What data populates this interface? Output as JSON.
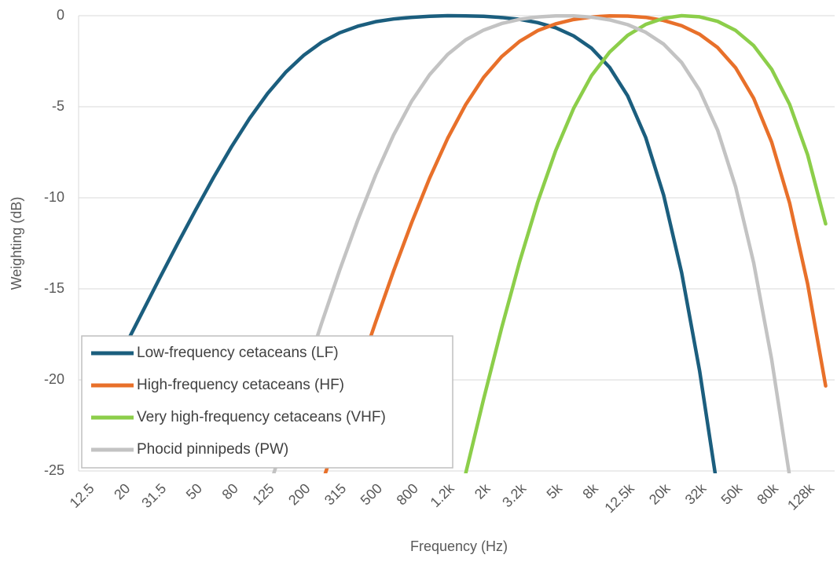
{
  "chart_data": {
    "type": "line",
    "x_label": "Frequency (Hz)",
    "y_label": "Weighting (dB)",
    "categories": [
      "12.5",
      null,
      "20",
      null,
      "31.5",
      null,
      "50",
      null,
      "80",
      null,
      "125",
      null,
      "200",
      null,
      "315",
      null,
      "500",
      null,
      "800",
      null,
      "1.2k",
      null,
      "2k",
      null,
      "3.2k",
      null,
      "5k",
      null,
      "8k",
      null,
      "12.5k",
      null,
      "20k",
      null,
      "32k",
      null,
      "50k",
      null,
      "80k",
      null,
      "128k",
      null
    ],
    "ylim": [
      -25,
      0
    ],
    "yticks": [
      -25,
      -20,
      -15,
      -10,
      -5,
      0
    ],
    "grid": true,
    "legend": "lower left",
    "series": [
      {
        "name": "Low-frequency cetaceans (LF)",
        "color": "#1b5e7e",
        "values": [
          -22.25,
          -20.27,
          -18.3,
          -16.36,
          -14.42,
          -12.52,
          -10.67,
          -8.88,
          -7.19,
          -5.64,
          -4.27,
          -3.11,
          -2.18,
          -1.46,
          -0.94,
          -0.58,
          -0.33,
          -0.18,
          -0.09,
          -0.03,
          0.0,
          -0.01,
          -0.03,
          -0.1,
          -0.2,
          -0.38,
          -0.66,
          -1.11,
          -1.79,
          -2.84,
          -4.4,
          -6.68,
          -9.85,
          -14.11,
          -19.51,
          -26.03,
          null,
          null,
          null,
          null,
          null,
          null
        ]
      },
      {
        "name": "High-frequency cetaceans (HF)",
        "color": "#e8702a",
        "values": [
          null,
          null,
          null,
          null,
          null,
          null,
          null,
          null,
          null,
          null,
          null,
          null,
          -28.82,
          -25.76,
          -22.73,
          -19.74,
          -16.83,
          -14.02,
          -11.37,
          -8.92,
          -6.74,
          -4.89,
          -3.39,
          -2.25,
          -1.41,
          -0.82,
          -0.45,
          -0.21,
          -0.07,
          -0.01,
          -0.02,
          -0.09,
          -0.26,
          -0.55,
          -1.02,
          -1.75,
          -2.86,
          -4.53,
          -6.94,
          -10.29,
          -14.73,
          -20.33
        ]
      },
      {
        "name": "Very high-frequency cetaceans (VHF)",
        "color": "#8cce4a",
        "values": [
          null,
          null,
          null,
          null,
          null,
          null,
          null,
          null,
          null,
          null,
          null,
          null,
          null,
          null,
          null,
          null,
          null,
          null,
          null,
          null,
          -29.37,
          -25.15,
          -21.05,
          -17.15,
          -13.51,
          -10.24,
          -7.42,
          -5.09,
          -3.28,
          -2.0,
          -1.08,
          -0.48,
          -0.14,
          0.0,
          -0.06,
          -0.31,
          -0.81,
          -1.64,
          -2.94,
          -4.87,
          -7.64,
          -11.43
        ]
      },
      {
        "name": "Phocid pinnipeds (PW)",
        "color": "#c3c3c3",
        "values": [
          null,
          null,
          null,
          null,
          null,
          null,
          null,
          null,
          null,
          null,
          -26.23,
          -23.05,
          -19.94,
          -16.89,
          -13.98,
          -11.25,
          -8.75,
          -6.55,
          -4.7,
          -3.24,
          -2.13,
          -1.33,
          -0.79,
          -0.43,
          -0.2,
          -0.07,
          -0.01,
          -0.01,
          -0.08,
          -0.23,
          -0.49,
          -0.91,
          -1.56,
          -2.57,
          -4.09,
          -6.29,
          -9.4,
          -13.56,
          -18.87,
          -25.3,
          null,
          null
        ]
      }
    ]
  }
}
